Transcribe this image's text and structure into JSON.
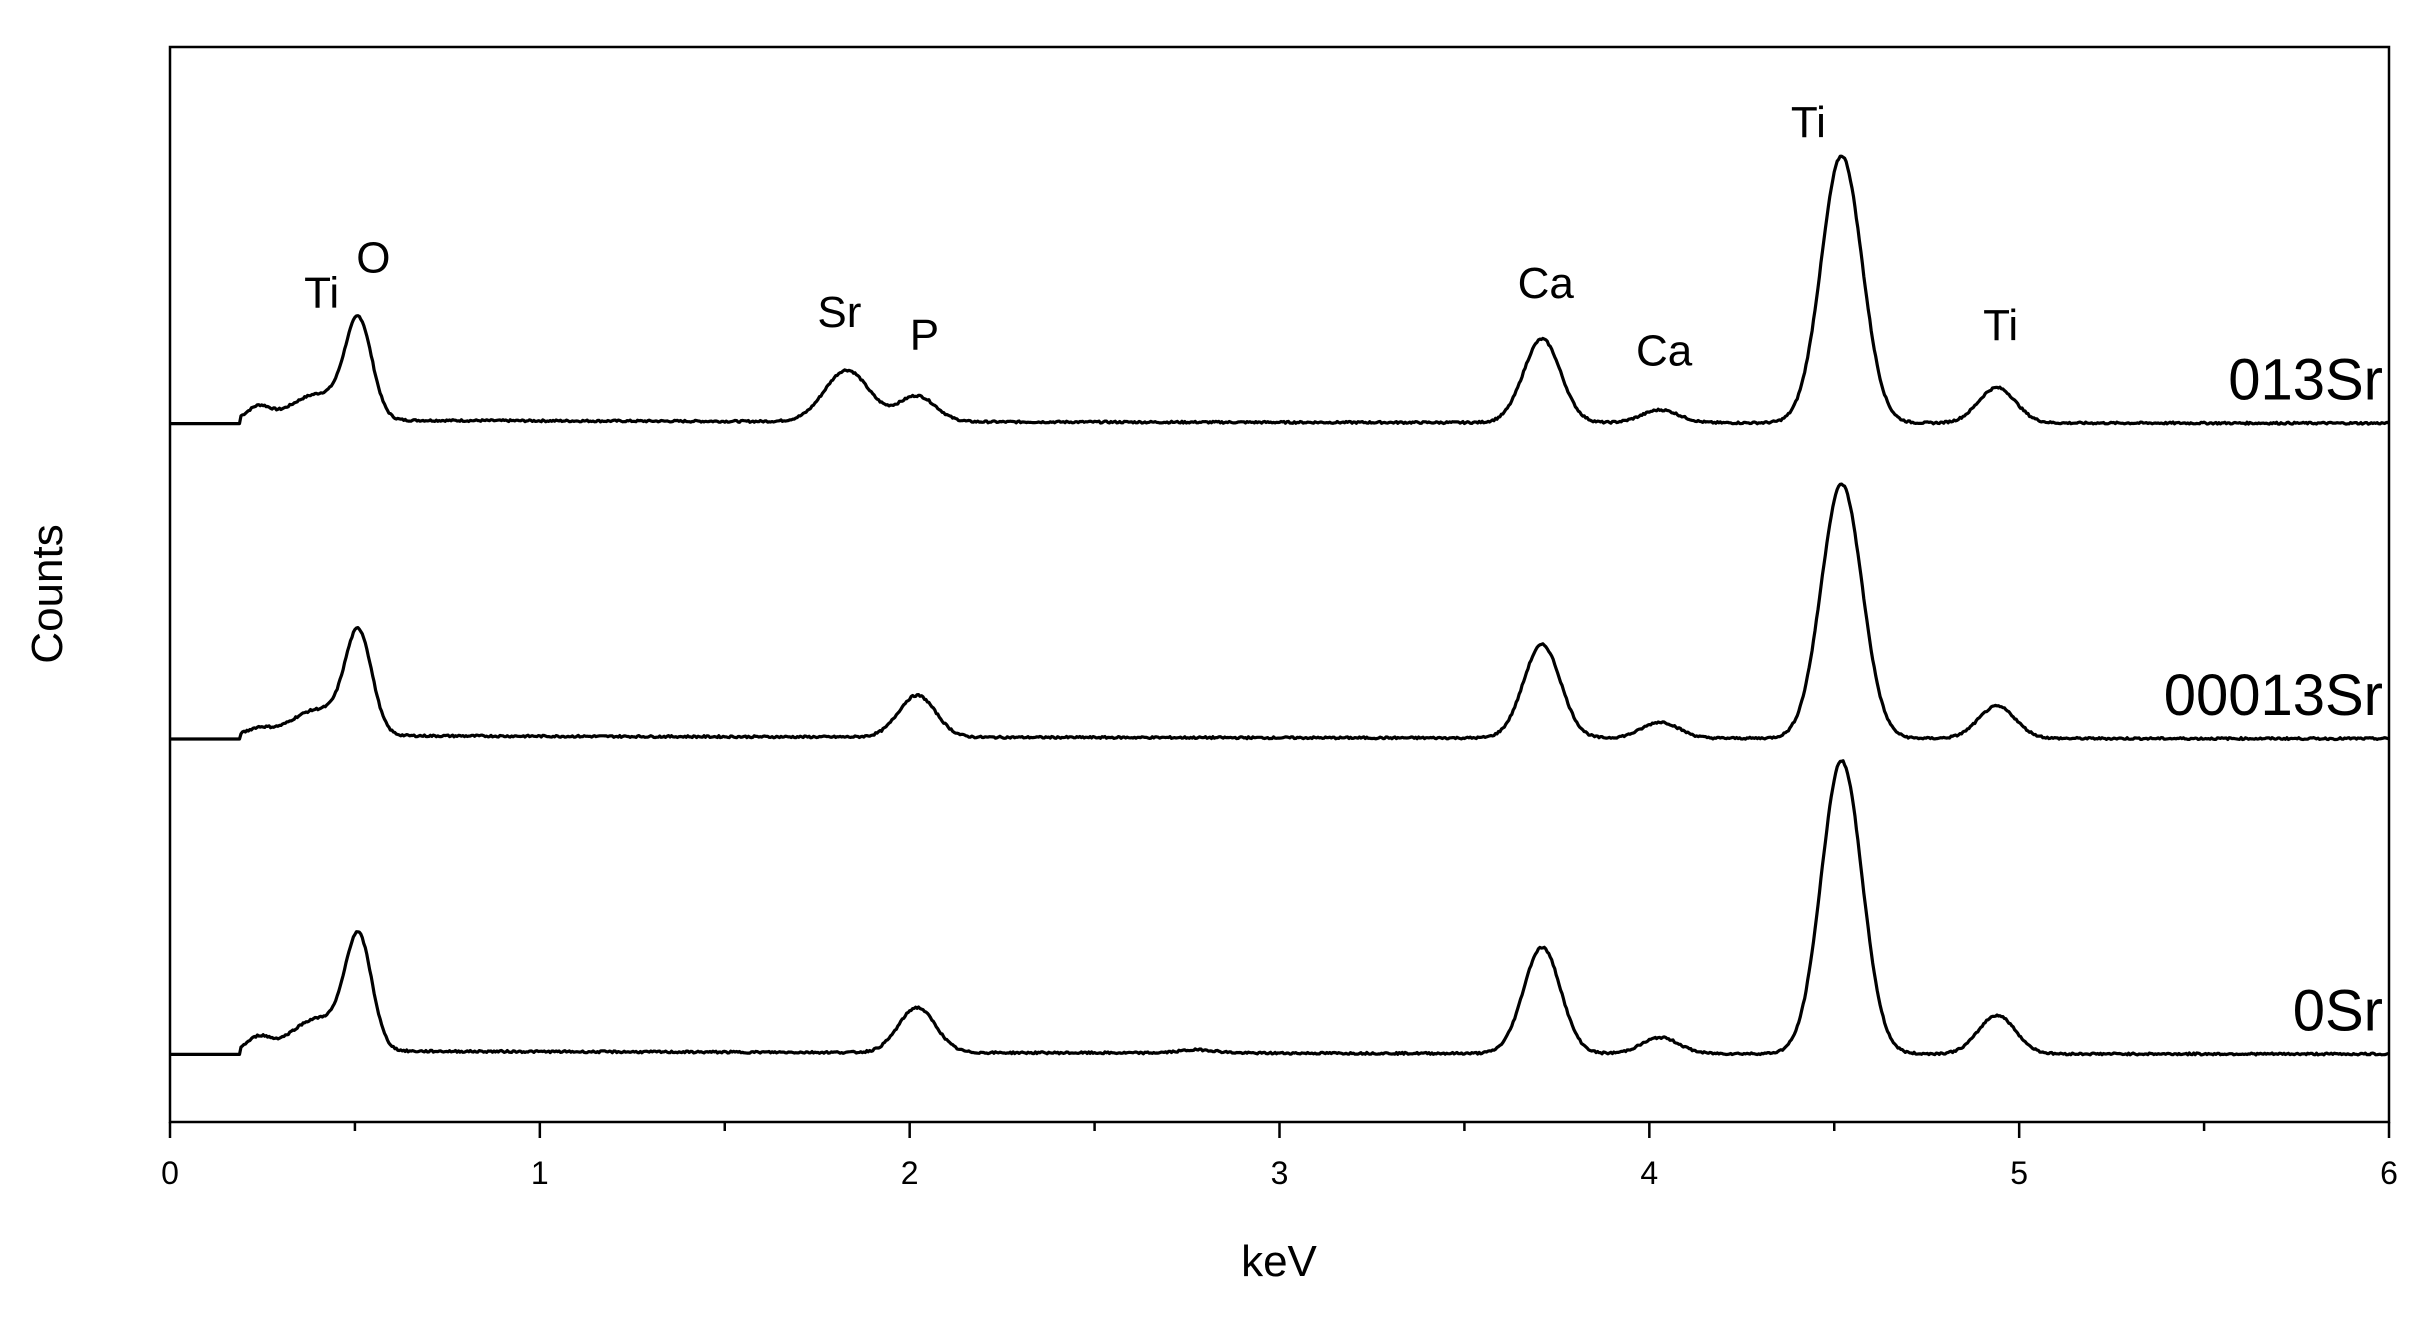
{
  "chart_data": {
    "type": "line",
    "title": "",
    "xlabel": "keV",
    "ylabel": "Counts",
    "xlim": [
      0,
      6
    ],
    "x_ticks": [
      "0",
      "1",
      "2",
      "3",
      "4",
      "5",
      "6"
    ],
    "x_minor_step": 0.5,
    "y_ticks_shown": false,
    "grid": false,
    "legend": "none (series labelled at right end of each trace)",
    "series": [
      {
        "name": "013Sr",
        "baseline": 1.0,
        "peaks": [
          {
            "x": 0.24,
            "h": 0.04,
            "w": 0.03
          },
          {
            "x": 0.4,
            "h": 0.08,
            "w": 0.07
          },
          {
            "x": 0.51,
            "h": 0.3,
            "w": 0.036
          },
          {
            "x": 1.83,
            "h": 0.16,
            "w": 0.06
          },
          {
            "x": 2.02,
            "h": 0.08,
            "w": 0.05
          },
          {
            "x": 3.71,
            "h": 0.26,
            "w": 0.05
          },
          {
            "x": 4.03,
            "h": 0.04,
            "w": 0.05
          },
          {
            "x": 4.52,
            "h": 0.83,
            "w": 0.055
          },
          {
            "x": 4.94,
            "h": 0.11,
            "w": 0.05
          }
        ],
        "annotations": [
          {
            "text": "Ti",
            "x": 0.41,
            "y": 1.36
          },
          {
            "text": "O",
            "x": 0.55,
            "y": 1.47
          },
          {
            "text": "Sr",
            "x": 1.81,
            "y": 1.3
          },
          {
            "text": "P",
            "x": 2.04,
            "y": 1.23
          },
          {
            "text": "Ca",
            "x": 3.72,
            "y": 1.39
          },
          {
            "text": "Ca",
            "x": 4.04,
            "y": 1.18
          },
          {
            "text": "Ti",
            "x": 4.43,
            "y": 1.89
          },
          {
            "text": "Ti",
            "x": 4.95,
            "y": 1.26
          }
        ]
      },
      {
        "name": "00013Sr",
        "baseline": 0.02,
        "peaks": [
          {
            "x": 0.24,
            "h": 0.02,
            "w": 0.03
          },
          {
            "x": 0.4,
            "h": 0.08,
            "w": 0.07
          },
          {
            "x": 0.51,
            "h": 0.31,
            "w": 0.036
          },
          {
            "x": 2.02,
            "h": 0.13,
            "w": 0.05
          },
          {
            "x": 3.71,
            "h": 0.29,
            "w": 0.05
          },
          {
            "x": 4.03,
            "h": 0.05,
            "w": 0.05
          },
          {
            "x": 4.52,
            "h": 0.79,
            "w": 0.055
          },
          {
            "x": 4.94,
            "h": 0.1,
            "w": 0.05
          }
        ],
        "annotations": []
      },
      {
        "name": "0Sr",
        "baseline": -0.96,
        "peaks": [
          {
            "x": 0.24,
            "h": 0.04,
            "w": 0.03
          },
          {
            "x": 0.4,
            "h": 0.1,
            "w": 0.07
          },
          {
            "x": 0.51,
            "h": 0.34,
            "w": 0.036
          },
          {
            "x": 2.02,
            "h": 0.14,
            "w": 0.05
          },
          {
            "x": 2.78,
            "h": 0.01,
            "w": 0.05
          },
          {
            "x": 3.71,
            "h": 0.33,
            "w": 0.05
          },
          {
            "x": 4.03,
            "h": 0.05,
            "w": 0.05
          },
          {
            "x": 4.52,
            "h": 0.91,
            "w": 0.055
          },
          {
            "x": 4.94,
            "h": 0.12,
            "w": 0.05
          }
        ],
        "annotations": []
      }
    ],
    "ylim": [
      -1.17,
      2.17
    ],
    "onset_x": 0.19
  }
}
